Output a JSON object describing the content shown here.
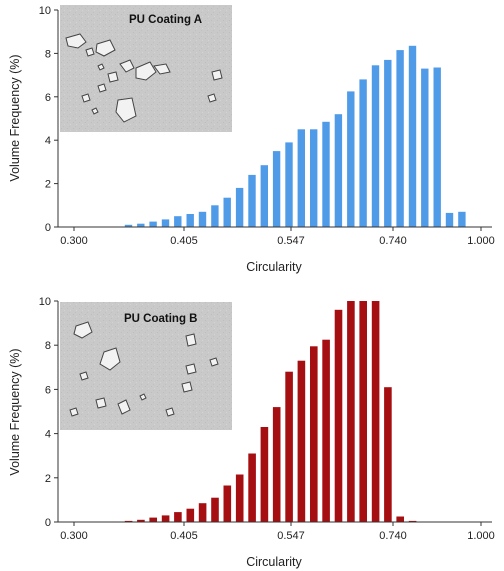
{
  "chart_data": [
    {
      "type": "bar",
      "inset_title": "PU Coating A",
      "xlabel": "Circularity",
      "ylabel": "Volume Frequency (%)",
      "ylim": [
        0,
        10
      ],
      "yticks": [
        "0",
        "2",
        "4",
        "6",
        "8",
        "10"
      ],
      "xticks": [
        "0.300",
        "0.405",
        "0.547",
        "0.740",
        "1.000"
      ],
      "color": "#4f9be8",
      "values": [
        0.0,
        0.0,
        0.0,
        0.0,
        0.0,
        0.1,
        0.15,
        0.25,
        0.35,
        0.5,
        0.6,
        0.7,
        1.0,
        1.35,
        1.8,
        2.4,
        2.85,
        3.5,
        3.9,
        4.5,
        4.5,
        4.85,
        5.2,
        6.25,
        6.8,
        7.45,
        7.7,
        8.15,
        8.35,
        7.3,
        7.35,
        0.65,
        0.7,
        0.0,
        0.0
      ],
      "grid": false,
      "legend": "none"
    },
    {
      "type": "bar",
      "inset_title": "PU Coating B",
      "xlabel": "Circularity",
      "ylabel": "Volume Frequency (%)",
      "ylim": [
        0,
        10
      ],
      "yticks": [
        "0",
        "2",
        "4",
        "6",
        "8",
        "10"
      ],
      "xticks": [
        "0.300",
        "0.405",
        "0.547",
        "0.740",
        "1.000"
      ],
      "color": "#a50f12",
      "values": [
        0.0,
        0.0,
        0.0,
        0.0,
        0.0,
        0.05,
        0.1,
        0.2,
        0.3,
        0.45,
        0.6,
        0.85,
        1.1,
        1.65,
        2.15,
        3.1,
        4.3,
        5.2,
        6.8,
        7.3,
        7.95,
        8.25,
        9.6,
        10.0,
        10.0,
        10.0,
        6.1,
        0.25,
        0.05,
        0.0,
        0.0,
        0.0,
        0.0,
        0.0,
        0.0
      ],
      "grid": false,
      "legend": "none"
    }
  ]
}
